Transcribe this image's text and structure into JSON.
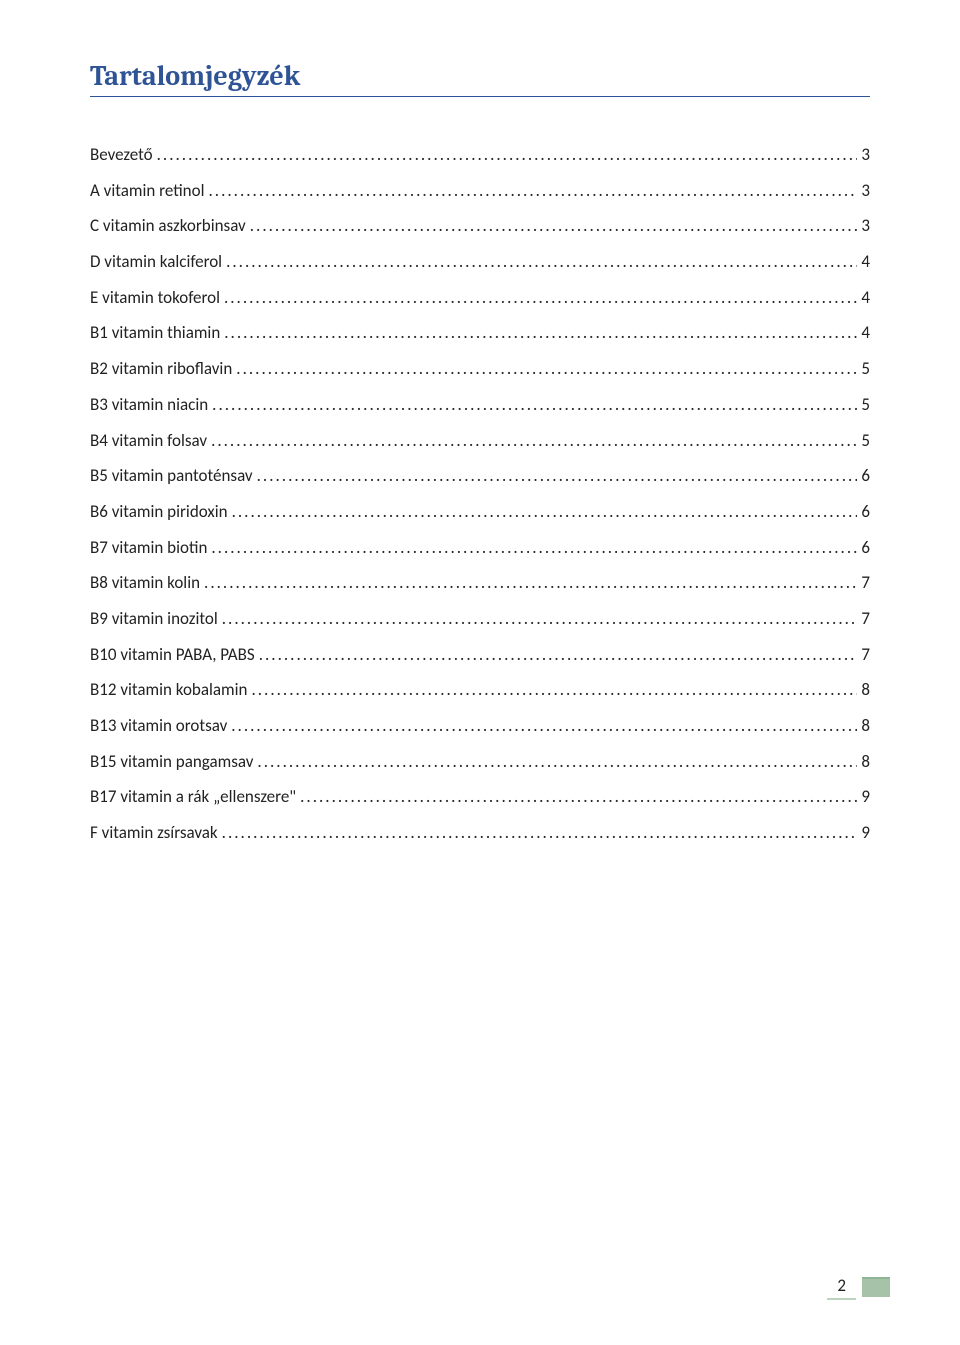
{
  "title": "Tartalomjegyzék",
  "entries": [
    {
      "label": "Bevezető",
      "page": "3"
    },
    {
      "label": "A vitamin retinol",
      "page": "3"
    },
    {
      "label": "C vitamin aszkorbinsav",
      "page": "3"
    },
    {
      "label": "D vitamin kalciferol",
      "page": "4"
    },
    {
      "label": "E vitamin tokoferol",
      "page": "4"
    },
    {
      "label": "B1 vitamin thiamin",
      "page": "4"
    },
    {
      "label": "B2 vitamin riboflavin",
      "page": "5"
    },
    {
      "label": "B3 vitamin niacin",
      "page": "5"
    },
    {
      "label": "B4 vitamin folsav",
      "page": "5"
    },
    {
      "label": "B5 vitamin pantoténsav",
      "page": "6"
    },
    {
      "label": "B6 vitamin piridoxin",
      "page": "6"
    },
    {
      "label": "B7 vitamin biotin",
      "page": "6"
    },
    {
      "label": "B8 vitamin kolin",
      "page": "7"
    },
    {
      "label": "B9 vitamin inozitol",
      "page": "7"
    },
    {
      "label": "B10 vitamin PABA, PABS",
      "page": "7"
    },
    {
      "label": "B12 vitamin kobalamin",
      "page": "8"
    },
    {
      "label": "B13 vitamin orotsav",
      "page": "8"
    },
    {
      "label": "B15 vitamin pangamsav",
      "page": "8"
    },
    {
      "label": "B17 vitamin a rák „ellenszere\"",
      "page": "9"
    },
    {
      "label": "F vitamin zsírsavak",
      "page": "9"
    }
  ],
  "page_number": "2",
  "colors": {
    "heading": "#2f5496",
    "text": "#222222",
    "footer_bar": "#a6c3aa",
    "footer_border": "#bcd3c0",
    "background": "#ffffff"
  },
  "typography": {
    "heading_family": "Cambria",
    "body_family": "Calibri",
    "heading_size_pt": 20,
    "body_size_pt": 12
  }
}
